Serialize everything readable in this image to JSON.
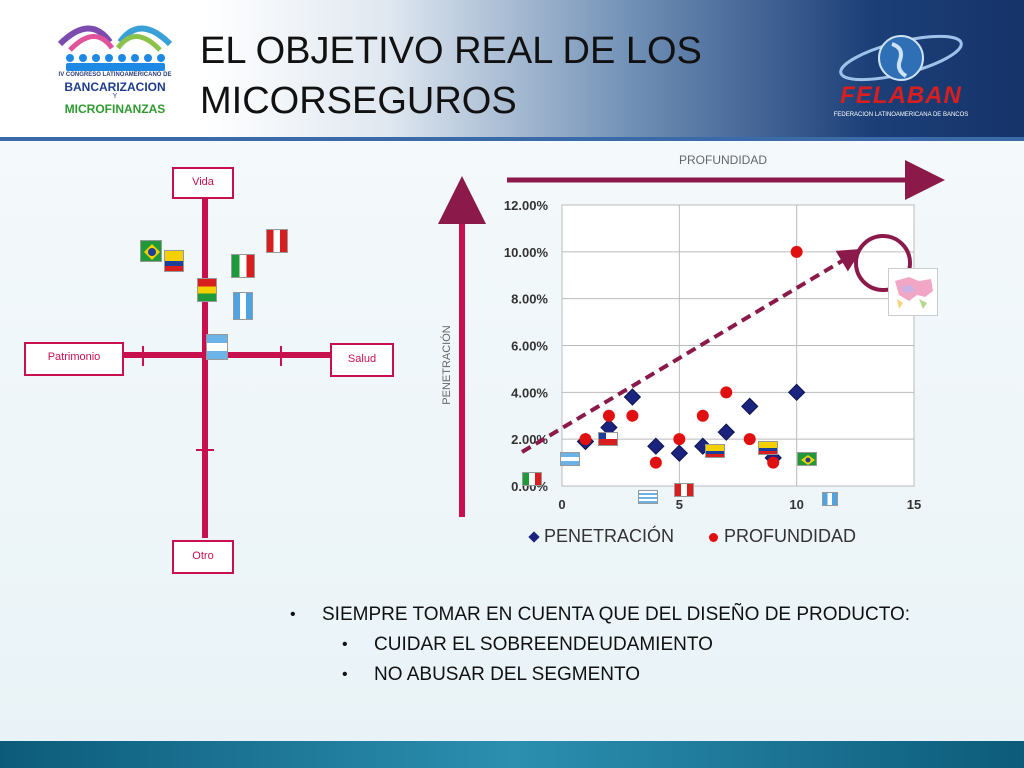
{
  "slide": {
    "title_line1": "EL OBJETIVO REAL DE LOS",
    "title_line2": "MICORSEGUROS"
  },
  "logo_left": {
    "congress": "IV CONGRESO LATINOAMERICANO DE",
    "line1": "BANCARIZACION",
    "line2": "Y",
    "line3": "MICROFINANZAS"
  },
  "logo_right": {
    "brand": "FELABAN",
    "sub": "FEDERACION LATINOAMERICANA DE BANCOS"
  },
  "quadrant": {
    "top": "Vida",
    "left": "Patrimonio",
    "right": "Salud",
    "bottom": "Otro"
  },
  "chart_data": {
    "type": "scatter",
    "title": "",
    "top_arrow_label": "PROFUNDIDAD",
    "ylabel": "PENETRACIÓN",
    "xlim": [
      0,
      15
    ],
    "ylim": [
      0,
      0.12
    ],
    "x_ticks": [
      "0",
      "5",
      "10",
      "15"
    ],
    "y_ticks": [
      "0.00%",
      "2.00%",
      "4.00%",
      "6.00%",
      "8.00%",
      "10.00%",
      "12.00%"
    ],
    "grid": true,
    "legend_position": "bottom",
    "series": [
      {
        "name": "PENETRACIÓN",
        "marker": "diamond",
        "color": "#1a237e",
        "x": [
          1,
          2,
          3,
          4,
          5,
          6,
          7,
          8,
          9,
          10
        ],
        "y": [
          0.019,
          0.025,
          0.038,
          0.017,
          0.014,
          0.017,
          0.023,
          0.034,
          0.012,
          0.04
        ]
      },
      {
        "name": "PROFUNDIDAD",
        "marker": "circle",
        "color": "#e01010",
        "x": [
          1,
          2,
          3,
          4,
          5,
          6,
          7,
          8,
          9,
          10
        ],
        "y": [
          0.02,
          0.03,
          0.03,
          0.01,
          0.02,
          0.03,
          0.04,
          0.02,
          0.01,
          0.1
        ]
      }
    ]
  },
  "bullets": {
    "main": "SIEMPRE TOMAR EN CUENTA QUE DEL DISEÑO DE PRODUCTO:",
    "sub1": "CUIDAR EL SOBREENDEUDAMIENTO",
    "sub2": "NO ABUSAR DEL SEGMENTO"
  },
  "colors": {
    "accent": "#c8104f",
    "arrow": "#8b1a4a",
    "trend": "#8b1a4a"
  }
}
